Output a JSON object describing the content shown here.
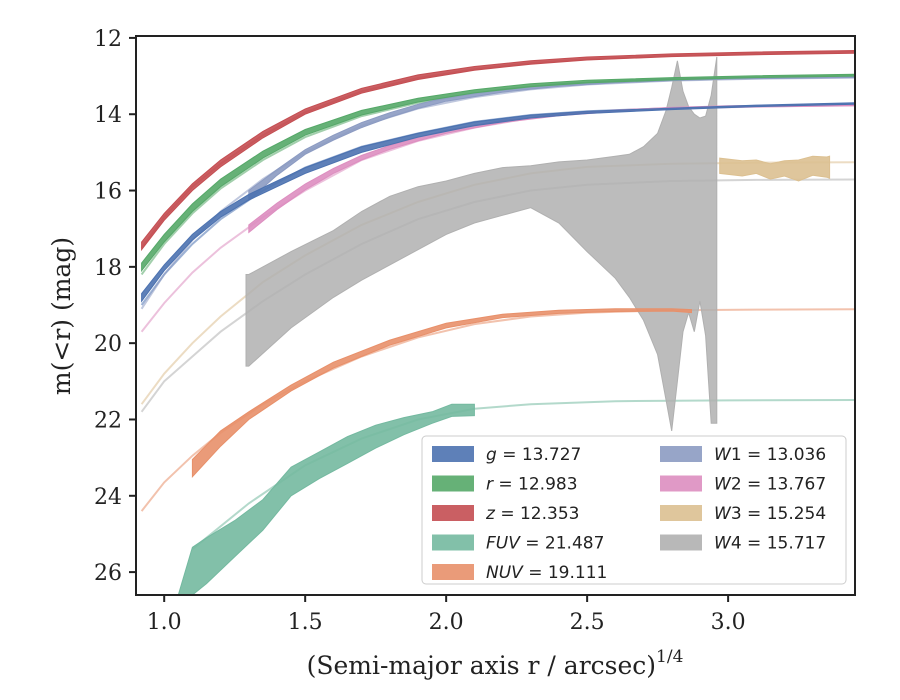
{
  "chart_data": {
    "type": "area",
    "xlabel": "(Semi-major axis r / arcsec)",
    "xlabel_sup": "1/4",
    "ylabel": "m(<r) (mag)",
    "xlim": [
      0.9,
      3.45
    ],
    "ylim": [
      26.6,
      11.95
    ],
    "y_inverted": true,
    "xticks": [
      "1.0",
      "1.5",
      "2.0",
      "2.5",
      "3.0"
    ],
    "yticks": [
      "12",
      "14",
      "16",
      "18",
      "20",
      "22",
      "24",
      "26"
    ],
    "legend_placement": "lower-right",
    "series": [
      {
        "name": "g = 13.727",
        "label_main": "g",
        "label_sub": "",
        "label_value": "13.727",
        "color": "#4c72b0",
        "model": {
          "x": [
            0.92,
            1.0,
            1.1,
            1.2,
            1.35,
            1.5,
            1.7,
            1.9,
            2.1,
            2.3,
            2.5,
            2.8,
            3.1,
            3.45
          ],
          "y": [
            19.0,
            18.2,
            17.4,
            16.75,
            16.0,
            15.4,
            14.85,
            14.5,
            14.2,
            14.02,
            13.92,
            13.84,
            13.79,
            13.73
          ]
        },
        "band": {
          "x": [
            0.92,
            1.0,
            1.1,
            1.2,
            1.3,
            1.4,
            1.5,
            1.7,
            1.9,
            2.1,
            2.3,
            2.5,
            2.8,
            3.1,
            3.45
          ],
          "y_low": [
            18.9,
            18.1,
            17.3,
            16.7,
            16.25,
            15.9,
            15.55,
            15.0,
            14.6,
            14.3,
            14.1,
            13.98,
            13.88,
            13.8,
            13.74
          ],
          "y_high": [
            18.7,
            17.95,
            17.15,
            16.55,
            16.1,
            15.75,
            15.4,
            14.85,
            14.5,
            14.2,
            14.02,
            13.92,
            13.84,
            13.76,
            13.7
          ]
        }
      },
      {
        "name": "r = 12.983",
        "label_main": "r",
        "label_sub": "",
        "label_value": "12.983",
        "color": "#55a868",
        "model": {
          "x": [
            0.92,
            1.0,
            1.1,
            1.2,
            1.35,
            1.5,
            1.7,
            1.9,
            2.1,
            2.3,
            2.5,
            2.8,
            3.1,
            3.45
          ],
          "y": [
            18.2,
            17.4,
            16.6,
            15.95,
            15.2,
            14.6,
            14.05,
            13.7,
            13.45,
            13.28,
            13.18,
            13.1,
            13.04,
            12.98
          ]
        },
        "band": {
          "x": [
            0.92,
            1.0,
            1.1,
            1.2,
            1.35,
            1.5,
            1.7,
            1.9,
            2.1,
            2.3,
            2.5,
            2.8,
            3.1,
            3.45
          ],
          "y_low": [
            18.1,
            17.35,
            16.55,
            15.9,
            15.15,
            14.55,
            14.02,
            13.68,
            13.44,
            13.28,
            13.18,
            13.1,
            13.04,
            13.0
          ],
          "y_high": [
            17.9,
            17.15,
            16.35,
            15.7,
            14.97,
            14.4,
            13.9,
            13.58,
            13.36,
            13.2,
            13.11,
            13.04,
            12.99,
            12.95
          ]
        }
      },
      {
        "name": "z = 12.353",
        "label_main": "z",
        "label_sub": "",
        "label_value": "12.353",
        "color": "#c44e52",
        "model": {
          "x": [
            0.92,
            1.0,
            1.1,
            1.2,
            1.35,
            1.5,
            1.7,
            1.9,
            2.1,
            2.3,
            2.5,
            2.8,
            3.1,
            3.45
          ],
          "y": [
            17.5,
            16.7,
            15.9,
            15.3,
            14.55,
            13.95,
            13.4,
            13.05,
            12.82,
            12.66,
            12.56,
            12.47,
            12.41,
            12.36
          ]
        },
        "band": {
          "x": [
            0.92,
            1.0,
            1.1,
            1.2,
            1.35,
            1.5,
            1.7,
            1.9,
            2.1,
            2.3,
            2.5,
            2.8,
            3.1,
            3.45
          ],
          "y_low": [
            17.55,
            16.78,
            16.0,
            15.38,
            14.62,
            14.0,
            13.45,
            13.09,
            12.85,
            12.69,
            12.58,
            12.49,
            12.44,
            12.4
          ],
          "y_high": [
            17.35,
            16.6,
            15.82,
            15.2,
            14.45,
            13.86,
            13.32,
            12.97,
            12.75,
            12.6,
            12.5,
            12.42,
            12.37,
            12.33
          ]
        }
      },
      {
        "name": "FUV = 21.487",
        "label_main": "FUV",
        "label_sub": "",
        "label_value": "21.487",
        "color": "#74b9a0",
        "model": {
          "x": [
            1.1,
            1.3,
            1.5,
            1.7,
            1.9,
            2.1,
            2.3,
            2.6,
            3.0,
            3.45
          ],
          "y": [
            25.4,
            24.2,
            23.2,
            22.5,
            22.0,
            21.72,
            21.6,
            21.52,
            21.5,
            21.49
          ]
        },
        "band": {
          "x": [
            1.05,
            1.1,
            1.15,
            1.25,
            1.35,
            1.45,
            1.55,
            1.65,
            1.75,
            1.85,
            1.95,
            2.02,
            2.1
          ],
          "y_low": [
            26.8,
            26.6,
            26.3,
            25.6,
            24.9,
            24.0,
            23.55,
            23.15,
            22.75,
            22.4,
            22.1,
            21.92,
            21.9
          ],
          "y_high": [
            26.6,
            25.35,
            25.1,
            24.65,
            24.1,
            23.25,
            22.85,
            22.45,
            22.15,
            21.95,
            21.8,
            21.6,
            21.6
          ]
        }
      },
      {
        "name": "NUV = 19.111",
        "label_main": "NUV",
        "label_sub": "",
        "label_value": "19.111",
        "color": "#e8906a",
        "model": {
          "x": [
            0.92,
            1.0,
            1.1,
            1.2,
            1.35,
            1.5,
            1.7,
            1.9,
            2.1,
            2.3,
            2.5,
            2.8,
            3.1,
            3.45
          ],
          "y": [
            24.4,
            23.65,
            22.95,
            22.35,
            21.6,
            21.0,
            20.35,
            19.85,
            19.5,
            19.3,
            19.2,
            19.14,
            19.12,
            19.11
          ]
        },
        "band": {
          "x": [
            1.1,
            1.2,
            1.3,
            1.45,
            1.6,
            1.8,
            2.0,
            2.2,
            2.4,
            2.6,
            2.8,
            2.87
          ],
          "y_low": [
            23.5,
            22.7,
            22.0,
            21.25,
            20.65,
            20.05,
            19.6,
            19.33,
            19.22,
            19.17,
            19.16,
            19.2
          ],
          "y_high": [
            23.05,
            22.3,
            21.8,
            21.1,
            20.5,
            19.92,
            19.48,
            19.24,
            19.14,
            19.1,
            19.1,
            19.12
          ]
        }
      },
      {
        "name": "W1 = 13.036",
        "label_main": "W",
        "label_sub": "1",
        "label_value": "13.036",
        "color": "#8c9bc2",
        "model": {
          "x": [
            0.92,
            1.0,
            1.1,
            1.2,
            1.35,
            1.5,
            1.7,
            1.9,
            2.1,
            2.3,
            2.5,
            2.8,
            3.1,
            3.45
          ],
          "y": [
            19.1,
            18.2,
            17.3,
            16.55,
            15.7,
            15.0,
            14.3,
            13.85,
            13.55,
            13.35,
            13.22,
            13.12,
            13.07,
            13.04
          ]
        },
        "band": {
          "x": [
            1.3,
            1.4,
            1.5,
            1.6,
            1.7,
            1.8,
            1.9,
            2.0,
            2.2,
            2.4,
            2.6,
            2.8,
            3.0,
            3.2,
            3.45
          ],
          "y_low": [
            16.25,
            15.6,
            15.05,
            14.68,
            14.35,
            14.08,
            13.85,
            13.66,
            13.42,
            13.27,
            13.18,
            13.12,
            13.08,
            13.06,
            13.04
          ],
          "y_high": [
            16.0,
            15.45,
            14.93,
            14.55,
            14.22,
            13.96,
            13.74,
            13.56,
            13.34,
            13.2,
            13.12,
            13.07,
            13.04,
            13.02,
            13.01
          ]
        }
      },
      {
        "name": "W2 = 13.767",
        "label_main": "W",
        "label_sub": "2",
        "label_value": "13.767",
        "color": "#dd8ec0",
        "model": {
          "x": [
            0.92,
            1.0,
            1.1,
            1.2,
            1.35,
            1.5,
            1.7,
            1.9,
            2.1,
            2.3,
            2.5,
            2.8,
            3.1,
            3.45
          ],
          "y": [
            19.7,
            18.95,
            18.15,
            17.5,
            16.7,
            16.0,
            15.2,
            14.7,
            14.35,
            14.1,
            13.95,
            13.85,
            13.8,
            13.77
          ]
        },
        "band": {
          "x": [
            1.3,
            1.4,
            1.5,
            1.6,
            1.7,
            1.8,
            1.9,
            2.0,
            2.2,
            2.4,
            2.6,
            2.8,
            3.0,
            3.2,
            3.45
          ],
          "y_low": [
            17.1,
            16.5,
            15.98,
            15.55,
            15.2,
            14.92,
            14.7,
            14.5,
            14.22,
            14.04,
            13.93,
            13.86,
            13.82,
            13.8,
            13.78
          ],
          "y_high": [
            16.9,
            16.33,
            15.83,
            15.42,
            15.08,
            14.82,
            14.61,
            14.42,
            14.16,
            14.0,
            13.89,
            13.82,
            13.78,
            13.76,
            13.75
          ]
        }
      },
      {
        "name": "W3 = 15.254",
        "label_main": "W",
        "label_sub": "3",
        "label_value": "15.254",
        "color": "#dcc091",
        "model": {
          "x": [
            0.92,
            1.0,
            1.1,
            1.2,
            1.35,
            1.5,
            1.7,
            1.9,
            2.1,
            2.3,
            2.5,
            2.8,
            3.1,
            3.45
          ],
          "y": [
            21.6,
            20.8,
            20.0,
            19.3,
            18.4,
            17.7,
            16.9,
            16.3,
            15.85,
            15.55,
            15.38,
            15.3,
            15.27,
            15.26
          ]
        },
        "band": {
          "x": [
            2.97,
            3.05,
            3.1,
            3.15,
            3.2,
            3.25,
            3.3,
            3.35,
            3.36
          ],
          "y_low": [
            15.55,
            15.62,
            15.55,
            15.7,
            15.62,
            15.75,
            15.6,
            15.65,
            15.68
          ],
          "y_high": [
            15.15,
            15.22,
            15.2,
            15.3,
            15.22,
            15.2,
            15.1,
            15.12,
            15.1
          ]
        }
      },
      {
        "name": "W4 = 15.717",
        "label_main": "W",
        "label_sub": "4",
        "label_value": "15.717",
        "color": "#b0b0b0",
        "model": {
          "x": [
            0.92,
            1.0,
            1.1,
            1.2,
            1.35,
            1.5,
            1.7,
            1.9,
            2.1,
            2.3,
            2.5,
            2.8,
            3.1,
            3.45
          ],
          "y": [
            21.8,
            21.0,
            20.35,
            19.7,
            18.9,
            18.2,
            17.4,
            16.75,
            16.3,
            16.0,
            15.85,
            15.75,
            15.72,
            15.71
          ]
        },
        "band": {
          "x": [
            1.29,
            1.3,
            1.45,
            1.6,
            1.7,
            1.8,
            1.9,
            2.0,
            2.1,
            2.2,
            2.3,
            2.4,
            2.5,
            2.6,
            2.65,
            2.7,
            2.75,
            2.78,
            2.8,
            2.82,
            2.84,
            2.86,
            2.88,
            2.9,
            2.92,
            2.94,
            2.96
          ],
          "y_low": [
            20.6,
            20.6,
            19.6,
            18.8,
            18.35,
            17.95,
            17.55,
            17.15,
            16.85,
            16.65,
            16.45,
            16.85,
            17.6,
            18.3,
            18.8,
            19.4,
            20.3,
            21.5,
            22.3,
            21.0,
            19.7,
            19.2,
            19.7,
            18.9,
            19.8,
            22.1,
            22.1
          ],
          "y_high": [
            18.2,
            18.2,
            17.6,
            17.05,
            16.55,
            16.15,
            15.9,
            15.75,
            15.55,
            15.4,
            15.35,
            15.25,
            15.2,
            15.1,
            15.05,
            14.85,
            14.5,
            13.9,
            13.3,
            12.6,
            13.4,
            13.8,
            14.0,
            14.1,
            14.05,
            13.5,
            12.5
          ]
        }
      }
    ]
  }
}
